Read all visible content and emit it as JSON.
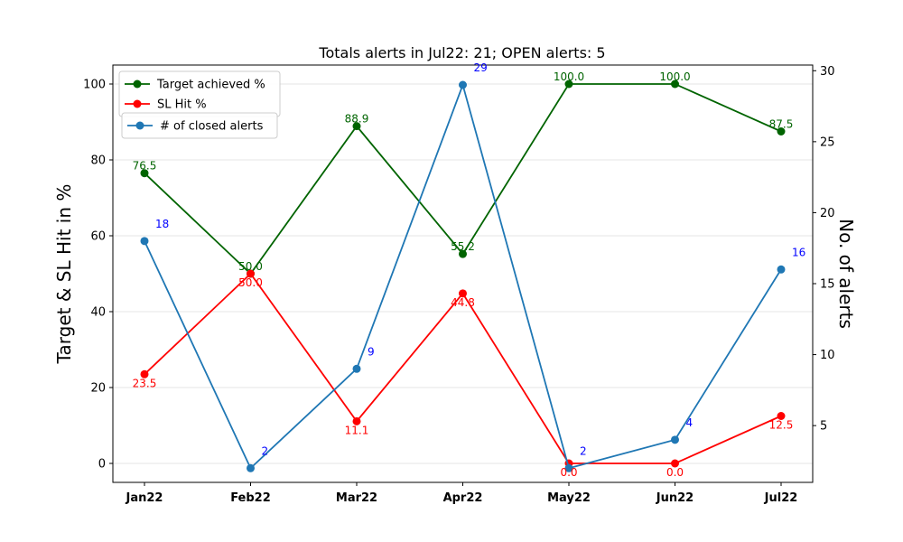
{
  "chart_data": {
    "type": "line",
    "title": "Totals alerts in Jul22: 21; OPEN alerts: 5",
    "categories": [
      "Jan22",
      "Feb22",
      "Mar22",
      "Apr22",
      "May22",
      "Jun22",
      "Jul22"
    ],
    "ylabel_left": "Target & SL Hit in %",
    "ylabel_right": "No. of alerts",
    "ylim_left": [
      -5,
      105
    ],
    "yticks_left": [
      0,
      20,
      40,
      60,
      80,
      100
    ],
    "ylim_right": [
      1,
      30.4
    ],
    "yticks_right": [
      5,
      10,
      15,
      20,
      25,
      30
    ],
    "grid": "horizontal",
    "legend_position": "upper-left",
    "series": [
      {
        "name": "Target achieved %",
        "axis": "left",
        "color": "#006400",
        "values": [
          76.5,
          50.0,
          88.9,
          55.2,
          100.0,
          100.0,
          87.5
        ],
        "labels": [
          "76.5",
          "50.0",
          "88.9",
          "55.2",
          "100.0",
          "100.0",
          "87.5"
        ]
      },
      {
        "name": "SL Hit %",
        "axis": "left",
        "color": "#ff0000",
        "values": [
          23.5,
          50.0,
          11.1,
          44.8,
          0.0,
          0.0,
          12.5
        ],
        "labels": [
          "23.5",
          "50.0",
          "11.1",
          "44.8",
          "0.0",
          "0.0",
          "12.5"
        ]
      },
      {
        "name": "# of closed alerts",
        "axis": "right",
        "color": "#1f77b4",
        "label_color": "#0000ff",
        "values": [
          18,
          2,
          9,
          29,
          2,
          4,
          16
        ],
        "labels": [
          "18",
          "2",
          "9",
          "29",
          "2",
          "4",
          "16"
        ]
      }
    ]
  }
}
